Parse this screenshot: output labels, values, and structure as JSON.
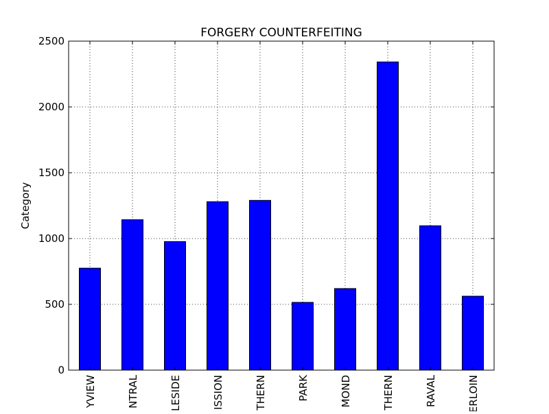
{
  "chart_data": {
    "type": "bar",
    "title": "FORGERY COUNTERFEITING",
    "xlabel": "",
    "ylabel": "Category",
    "ylim": [
      0,
      2500
    ],
    "yticks": [
      0,
      500,
      1000,
      1500,
      2000,
      2500
    ],
    "grid": true,
    "categories": [
      "YVIEW",
      "NTRAL",
      "LESIDE",
      "ISSION",
      "THERN",
      "PARK",
      "MOND",
      "THERN",
      "RAVAL",
      "ERLOIN"
    ],
    "values": [
      775,
      1143,
      977,
      1280,
      1290,
      515,
      620,
      2342,
      1097,
      562
    ],
    "colors": {
      "bar_fill": "#0000ff",
      "bar_edge": "#000000",
      "grid": "#000000",
      "axes": "#000000"
    }
  }
}
